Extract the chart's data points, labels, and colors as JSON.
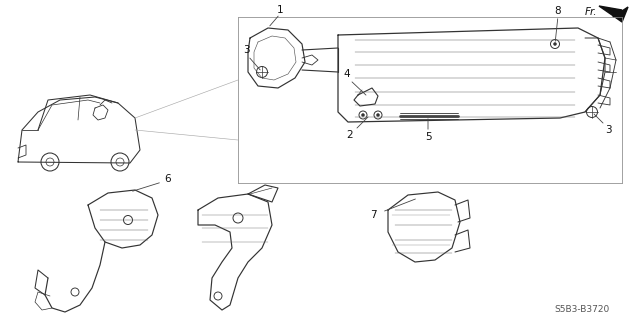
{
  "bg_color": "#ffffff",
  "line_color": "#333333",
  "diagram_code": "S5B3-B3720",
  "fig_width": 6.4,
  "fig_height": 3.19
}
